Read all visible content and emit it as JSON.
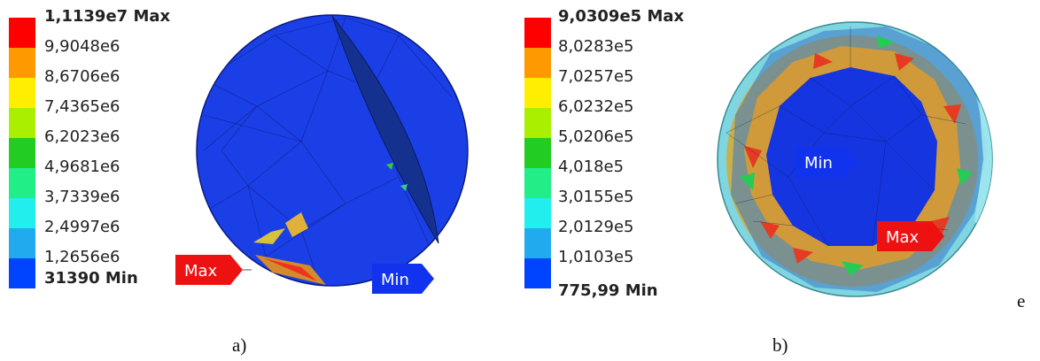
{
  "colors": [
    "#ff0000",
    "#ff9900",
    "#ffee00",
    "#aaee00",
    "#22cc22",
    "#22ee88",
    "#22eeee",
    "#22aaee",
    "#0044ff"
  ],
  "panel_a": {
    "legend": {
      "max": "1,1139e7 Max",
      "levels": [
        "9,9048e6",
        "8,6706e6",
        "7,4365e6",
        "6,2023e6",
        "4,9681e6",
        "3,7339e6",
        "2,4997e6",
        "1,2656e6"
      ],
      "min": "31390 Min"
    },
    "max_tag": "Max",
    "min_tag": "Min",
    "caption": "a)"
  },
  "panel_b": {
    "legend": {
      "max": "9,0309e5 Max",
      "levels": [
        "8,0283e5",
        "7,0257e5",
        "6,0232e5",
        "5,0206e5",
        "4,018e5",
        "3,0155e5",
        "2,0129e5",
        "1,0103e5"
      ],
      "min": "775,99 Min"
    },
    "max_tag": "Max",
    "min_tag": "Min",
    "caption": "b)"
  },
  "stray_char": "e"
}
